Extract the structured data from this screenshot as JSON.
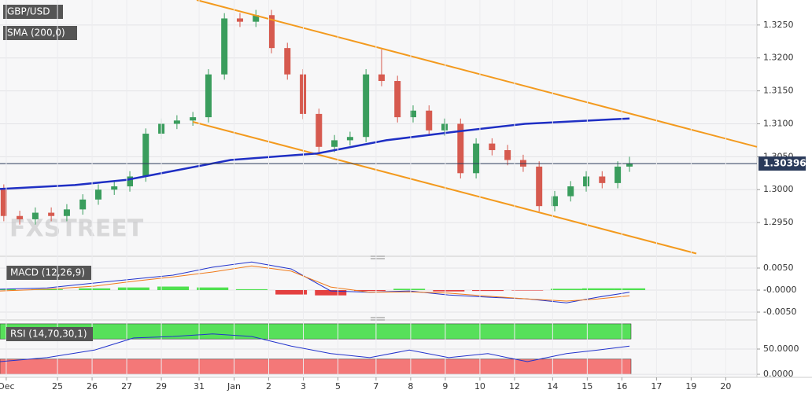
{
  "chart_data": [
    {
      "type": "candlestick",
      "watermark": "FXSTREET",
      "x": [
        -1.55,
        -1.09,
        -0.64,
        -0.18,
        0.27,
        0.73,
        1.18,
        1.64,
        2.09,
        2.55,
        3.0,
        3.45,
        3.91,
        4.36,
        4.82,
        5.27,
        5.73,
        6.18,
        6.64,
        7.09,
        7.55,
        8.0,
        8.45,
        8.91,
        9.36,
        9.82,
        10.27,
        10.73,
        11.18,
        11.64,
        12.09,
        12.55,
        13.0,
        13.45,
        13.91,
        14.36,
        14.82,
        15.27,
        15.73,
        16.18,
        16.52
      ],
      "up_color": "#3a9d5d",
      "down_color": "#d65a4f",
      "series": [
        {
          "name": "GBP/USD",
          "open": [
            1.3,
            1.296,
            1.2955,
            1.2965,
            1.296,
            1.297,
            1.2985,
            1.3,
            1.3005,
            1.302,
            1.3085,
            1.31,
            1.3105,
            1.311,
            1.3175,
            1.326,
            1.3255,
            1.3265,
            1.3215,
            1.3175,
            1.3115,
            1.3065,
            1.3075,
            1.308,
            1.3175,
            1.3165,
            1.311,
            1.312,
            1.309,
            1.31,
            1.3025,
            1.307,
            1.306,
            1.3045,
            1.3035,
            1.2975,
            1.299,
            1.3005,
            1.302,
            1.301,
            1.3035
          ],
          "high": [
            1.3008,
            1.2968,
            1.2973,
            1.2973,
            1.2978,
            1.2993,
            1.3008,
            1.3013,
            1.3028,
            1.3093,
            1.3108,
            1.3113,
            1.3118,
            1.3183,
            1.3268,
            1.3268,
            1.3273,
            1.3273,
            1.3223,
            1.3183,
            1.3123,
            1.3083,
            1.3088,
            1.3183,
            1.3213,
            1.3173,
            1.3128,
            1.3128,
            1.3108,
            1.3108,
            1.3078,
            1.3078,
            1.3068,
            1.3053,
            1.3043,
            1.2998,
            1.3013,
            1.3028,
            1.3028,
            1.3043,
            1.305
          ],
          "low": [
            1.2952,
            1.2947,
            1.2947,
            1.2952,
            1.2952,
            1.2962,
            1.2977,
            1.2992,
            1.2997,
            1.3012,
            1.3077,
            1.3092,
            1.3097,
            1.3102,
            1.3167,
            1.3247,
            1.3247,
            1.3207,
            1.3167,
            1.3107,
            1.3057,
            1.3057,
            1.3067,
            1.3072,
            1.3157,
            1.3102,
            1.3102,
            1.3082,
            1.3082,
            1.3017,
            1.3017,
            1.3052,
            1.3037,
            1.3027,
            1.2967,
            1.2967,
            1.2982,
            1.2997,
            1.3002,
            1.3002,
            1.3027
          ],
          "close": [
            1.296,
            1.2955,
            1.2965,
            1.296,
            1.297,
            1.2985,
            1.3,
            1.3005,
            1.302,
            1.3085,
            1.31,
            1.3105,
            1.311,
            1.3175,
            1.326,
            1.3255,
            1.3265,
            1.3215,
            1.3175,
            1.3115,
            1.3065,
            1.3075,
            1.308,
            1.3175,
            1.3165,
            1.311,
            1.312,
            1.309,
            1.31,
            1.3025,
            1.307,
            1.306,
            1.3045,
            1.3035,
            1.2975,
            1.299,
            1.3005,
            1.302,
            1.301,
            1.3035,
            1.30396
          ]
        }
      ],
      "lines": [
        {
          "name": "SMA (200,0)",
          "color": "#1f2fc4",
          "x": [
            -1.66,
            0.5,
            2.0,
            3.5,
            5.0,
            7.5,
            9.5,
            11.5,
            13.5,
            15.0,
            16.52
          ],
          "values": [
            1.3001,
            1.3007,
            1.3015,
            1.303,
            1.3045,
            1.3055,
            1.3075,
            1.3088,
            1.31,
            1.3104,
            1.3108
          ]
        }
      ],
      "trendlines": [
        {
          "color": "#f39a1e",
          "x": [
            4.02,
            20.2
          ],
          "values": [
            1.3288,
            1.3065
          ]
        },
        {
          "color": "#f39a1e",
          "x": [
            3.91,
            18.45
          ],
          "values": [
            1.3103,
            1.2903
          ]
        }
      ],
      "last_price": 1.30396,
      "xlim": [
        -1.66,
        20.2
      ],
      "ylim": [
        1.29,
        1.3288
      ],
      "yticks": [
        {
          "value": 1.295,
          "label": "1.2950"
        },
        {
          "value": 1.3,
          "label": "1.3000"
        },
        {
          "value": 1.305,
          "label": "1.3050"
        },
        {
          "value": 1.31,
          "label": "1.3100"
        },
        {
          "value": 1.315,
          "label": "1.3150"
        },
        {
          "value": 1.32,
          "label": "1.3200"
        },
        {
          "value": 1.325,
          "label": "1.3250"
        }
      ],
      "grid": true
    },
    {
      "type": "macd",
      "title": "MACD (12,26,9)",
      "x": [
        -1.66,
        -0.3,
        1.07,
        2.2,
        3.34,
        4.48,
        5.61,
        6.75,
        7.89,
        9.02,
        10.16,
        11.3,
        12.43,
        13.57,
        14.7,
        15.61,
        16.52
      ],
      "series": [
        {
          "color": "#2233cc",
          "values": [
            0.0002,
            0.0005,
            0.0016,
            0.0025,
            0.0034,
            0.0052,
            0.0064,
            0.0048,
            -0.0002,
            -0.0005,
            -0.0002,
            -0.0011,
            -0.0016,
            -0.002,
            -0.0029,
            -0.0016,
            -0.0005
          ]
        },
        {
          "color": "#f07a1a",
          "values": [
            -0.0002,
            0.0002,
            0.0009,
            0.002,
            0.003,
            0.0041,
            0.0055,
            0.0043,
            0.0007,
            -0.0005,
            -0.0004,
            -0.0007,
            -0.0014,
            -0.002,
            -0.0025,
            -0.002,
            -0.0013
          ]
        }
      ],
      "histogram": [
        0.0002,
        0.0002,
        0.0004,
        0.0006,
        0.0008,
        0.0006,
        0.0002,
        -0.001,
        -0.0012,
        -0.0002,
        0.0003,
        -0.0003,
        -0.0002,
        -0.0001,
        0.0003,
        0.0004,
        0.0004
      ],
      "up_color": "#33dd33",
      "down_color": "#e02020",
      "xlim": [
        -1.66,
        20.2
      ],
      "ylim": [
        -0.00643,
        0.00643
      ],
      "yticks": [
        {
          "value": -0.005,
          "label": "-0.0050"
        },
        {
          "value": 0,
          "label": "-0.0000"
        },
        {
          "value": 0.005,
          "label": "0.0050"
        }
      ],
      "grid": true
    },
    {
      "type": "rsi",
      "title": "RSI (14,70,30,1)",
      "x": [
        -1.66,
        -0.3,
        1.07,
        2.2,
        3.34,
        4.48,
        5.61,
        6.75,
        7.89,
        9.02,
        10.16,
        11.3,
        12.43,
        13.57,
        14.7,
        15.61,
        16.52
      ],
      "series": [
        {
          "color": "#2233cc",
          "values": [
            25,
            33,
            48,
            72,
            75,
            80,
            75,
            56,
            41,
            33,
            48,
            33,
            41,
            25,
            41,
            48,
            56
          ]
        }
      ],
      "bands": [
        {
          "from": 70,
          "to": 100,
          "color": "#57e05a"
        },
        {
          "from": 0,
          "to": 30,
          "color": "#f47878"
        }
      ],
      "xlim": [
        -1.66,
        20.2
      ],
      "ylim": [
        -3,
        103
      ],
      "yticks": [
        {
          "value": 0,
          "label": "0.0000"
        },
        {
          "value": 50,
          "label": "50.0000"
        }
      ],
      "xticks": [
        {
          "value": -1.48,
          "label": "Dec"
        },
        {
          "value": 0,
          "label": "25"
        },
        {
          "value": 1,
          "label": "26"
        },
        {
          "value": 2,
          "label": "27"
        },
        {
          "value": 3,
          "label": "29"
        },
        {
          "value": 4.09,
          "label": "31"
        },
        {
          "value": 5.1,
          "label": "Jan"
        },
        {
          "value": 6.1,
          "label": "2"
        },
        {
          "value": 7.1,
          "label": "3"
        },
        {
          "value": 8.1,
          "label": "5"
        },
        {
          "value": 9.2,
          "label": "7"
        },
        {
          "value": 10.2,
          "label": "8"
        },
        {
          "value": 11.2,
          "label": "9"
        },
        {
          "value": 12.2,
          "label": "10"
        },
        {
          "value": 13.2,
          "label": "12"
        },
        {
          "value": 14.3,
          "label": "14"
        },
        {
          "value": 15.3,
          "label": "15"
        },
        {
          "value": 16.3,
          "label": "16"
        },
        {
          "value": 17.3,
          "label": "17"
        },
        {
          "value": 18.3,
          "label": "19"
        },
        {
          "value": 19.3,
          "label": "20"
        }
      ],
      "grid": true
    }
  ]
}
